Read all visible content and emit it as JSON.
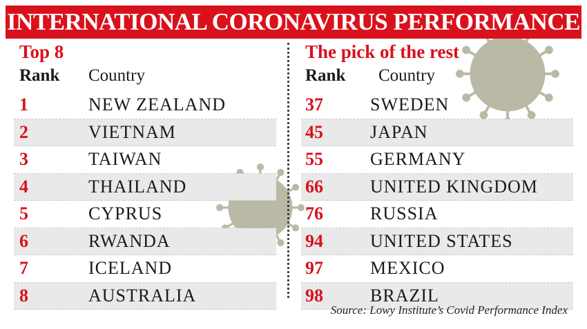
{
  "title": "INTERNATIONAL CORONAVIRUS PERFORMANCE",
  "colors": {
    "accent": "#d9111c",
    "shade": "#e9e9e9",
    "virus": "#b9b9a6"
  },
  "left": {
    "heading": "Top 8",
    "rank_label": "Rank",
    "country_label": "Country",
    "rows": [
      {
        "rank": "1",
        "country": "NEW ZEALAND"
      },
      {
        "rank": "2",
        "country": "VIETNAM"
      },
      {
        "rank": "3",
        "country": "TAIWAN"
      },
      {
        "rank": "4",
        "country": "THAILAND"
      },
      {
        "rank": "5",
        "country": "CYPRUS"
      },
      {
        "rank": "6",
        "country": "RWANDA"
      },
      {
        "rank": "7",
        "country": "ICELAND"
      },
      {
        "rank": "8",
        "country": "AUSTRALIA"
      }
    ]
  },
  "right": {
    "heading": "The pick of the rest",
    "rank_label": "Rank",
    "country_label": "Country",
    "rows": [
      {
        "rank": "37",
        "country": "SWEDEN"
      },
      {
        "rank": "45",
        "country": "JAPAN"
      },
      {
        "rank": "55",
        "country": "GERMANY"
      },
      {
        "rank": "66",
        "country": "UNITED KINGDOM"
      },
      {
        "rank": "76",
        "country": "RUSSIA"
      },
      {
        "rank": "94",
        "country": "UNITED STATES"
      },
      {
        "rank": "97",
        "country": "MEXICO"
      },
      {
        "rank": "98",
        "country": "BRAZIL"
      }
    ]
  },
  "source": "Source: Lowy Institute’s Covid Performance Index",
  "chart_data": {
    "type": "table",
    "title": "INTERNATIONAL CORONAVIRUS PERFORMANCE",
    "columns": [
      "Rank",
      "Country"
    ],
    "tables": [
      {
        "name": "Top 8",
        "rows": [
          [
            1,
            "NEW ZEALAND"
          ],
          [
            2,
            "VIETNAM"
          ],
          [
            3,
            "TAIWAN"
          ],
          [
            4,
            "THAILAND"
          ],
          [
            5,
            "CYPRUS"
          ],
          [
            6,
            "RWANDA"
          ],
          [
            7,
            "ICELAND"
          ],
          [
            8,
            "AUSTRALIA"
          ]
        ]
      },
      {
        "name": "The pick of the rest",
        "rows": [
          [
            37,
            "SWEDEN"
          ],
          [
            45,
            "JAPAN"
          ],
          [
            55,
            "GERMANY"
          ],
          [
            66,
            "UNITED KINGDOM"
          ],
          [
            76,
            "RUSSIA"
          ],
          [
            94,
            "UNITED STATES"
          ],
          [
            97,
            "MEXICO"
          ],
          [
            98,
            "BRAZIL"
          ]
        ]
      }
    ],
    "source": "Source: Lowy Institute’s Covid Performance Index"
  },
  "icons": {
    "decoration": "coronavirus-icon"
  }
}
